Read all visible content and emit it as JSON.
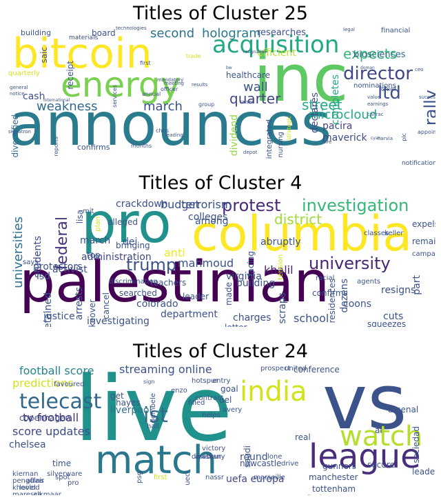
{
  "clouds": [
    {
      "title": "Titles of Cluster 25",
      "words": [
        "announces",
        "inc",
        "bitcoin",
        "energy",
        "acquisition",
        "director",
        "ltd",
        "expects",
        "hologram",
        "quarter",
        "street",
        "microcloud",
        "wall",
        "second",
        "weakness",
        "march",
        "rally",
        "maverick",
        "pacira",
        "dividend",
        "declares",
        "completes",
        "biosciences",
        "researches",
        "efficient",
        "healthcare",
        "confirms",
        "diversified",
        "cash",
        "receipt",
        "saic",
        "building",
        "materials",
        "board",
        "technologies",
        "quarterly",
        "integrated",
        "nursing",
        "strategic",
        "nominations",
        "chief",
        "officer",
        "meeting",
        "mandatory",
        "annual",
        "trade",
        "first",
        "months",
        "chris",
        "signatron",
        "reports",
        "general",
        "notice",
        "international",
        "services",
        "group",
        "raises",
        "results",
        "depot",
        "notification",
        "appoints",
        "plc",
        "legal",
        "financial",
        "doman",
        "value",
        "earnings",
        "harvia",
        "successfully",
        "calfrac",
        "ceo",
        "bw",
        "leading",
        "hire",
        "resignation",
        "cyan",
        "well"
      ]
    },
    {
      "title": "Titles of Cluster 4",
      "words": [
        "palestinian",
        "columbia",
        "pro",
        "protest",
        "investigation",
        "university",
        "trump",
        "federal",
        "district",
        "universities",
        "students",
        "protestors",
        "activist",
        "administration",
        "dei",
        "anti",
        "mahmoud",
        "khalil",
        "terrorism",
        "budget",
        "crackdown",
        "colleges",
        "among",
        "alleged",
        "bringing",
        "march",
        "says",
        "top",
        "lisa",
        "mit",
        "isd",
        "justice",
        "investigating",
        "department",
        "colorado",
        "charges",
        "school",
        "coons",
        "squeezes",
        "cuts",
        "dozens",
        "resigns",
        "part",
        "building",
        "virginia",
        "leader",
        "made",
        "takeover",
        "cancel",
        "searched",
        "teachers",
        "discrimination",
        "scraps",
        "facing",
        "residences",
        "agents",
        "confirms",
        "racial",
        "split",
        "letter",
        "arrests",
        "detained",
        "abruptly",
        "expels",
        "remains",
        "classes",
        "keller",
        "campaign",
        "tension",
        "plan"
      ]
    },
    {
      "title": "Titles of Cluster 24",
      "words": [
        "live",
        "vs",
        "match",
        "league",
        "watch",
        "india",
        "telecast",
        "ist",
        "football score",
        "streaming online",
        "predictions",
        "tv football",
        "score updates",
        "uefa europa",
        "round",
        "liverpool",
        "chelsea",
        "copenhagen",
        "goal",
        "uel",
        "conference",
        "al",
        "time",
        "get",
        "secure",
        "gunners",
        "newcastle",
        "saudi",
        "arabian",
        "victory",
        "lone",
        "drive",
        "real",
        "arsenal",
        "sociedad",
        "leaders",
        "manchester",
        "tottenham",
        "quarterfinals",
        "united",
        "prospect",
        "entry",
        "hotspur",
        "enzo",
        "dembele",
        "contract",
        "filled",
        "avery",
        "helps",
        "hall",
        "sign",
        "hayes",
        "favoured",
        "kiernan",
        "silverware",
        "penguins",
        "khoolod",
        "maresca",
        "alkmaar",
        "level",
        "affair",
        "spot",
        "pro",
        "nassr",
        "uecl",
        "psg",
        "first",
        "dewsbury",
        "marseille"
      ]
    }
  ]
}
